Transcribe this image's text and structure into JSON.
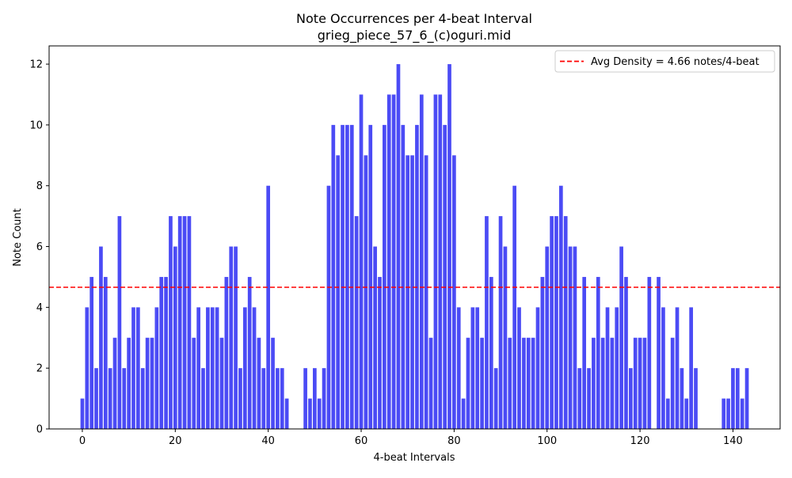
{
  "chart_data": {
    "type": "bar",
    "title": "Note Occurrences per 4-beat Interval",
    "subtitle": "grieg_piece_57_6_(c)oguri.mid",
    "xlabel": "4-beat Intervals",
    "ylabel": "Note Count",
    "xlim": [
      -7.15,
      150.15
    ],
    "ylim": [
      0,
      12.6
    ],
    "xticks": [
      0,
      20,
      40,
      60,
      80,
      100,
      120,
      140
    ],
    "yticks": [
      0,
      2,
      4,
      6,
      8,
      10,
      12
    ],
    "bar_color": "#4b4bf5",
    "x": [
      0,
      1,
      2,
      3,
      4,
      5,
      6,
      7,
      8,
      9,
      10,
      11,
      12,
      13,
      14,
      15,
      16,
      17,
      18,
      19,
      20,
      21,
      22,
      23,
      24,
      25,
      26,
      27,
      28,
      29,
      30,
      31,
      32,
      33,
      34,
      35,
      36,
      37,
      38,
      39,
      40,
      41,
      42,
      43,
      44,
      45,
      46,
      47,
      48,
      49,
      50,
      51,
      52,
      53,
      54,
      55,
      56,
      57,
      58,
      59,
      60,
      61,
      62,
      63,
      64,
      65,
      66,
      67,
      68,
      69,
      70,
      71,
      72,
      73,
      74,
      75,
      76,
      77,
      78,
      79,
      80,
      81,
      82,
      83,
      84,
      85,
      86,
      87,
      88,
      89,
      90,
      91,
      92,
      93,
      94,
      95,
      96,
      97,
      98,
      99,
      100,
      101,
      102,
      103,
      104,
      105,
      106,
      107,
      108,
      109,
      110,
      111,
      112,
      113,
      114,
      115,
      116,
      117,
      118,
      119,
      120,
      121,
      122,
      123,
      124,
      125,
      126,
      127,
      128,
      129,
      130,
      131,
      132,
      133,
      134,
      135,
      136,
      137,
      138,
      139,
      140,
      141,
      142,
      143
    ],
    "values": [
      1,
      4,
      5,
      2,
      6,
      5,
      2,
      3,
      7,
      2,
      3,
      4,
      4,
      2,
      3,
      3,
      4,
      5,
      5,
      7,
      6,
      7,
      7,
      7,
      3,
      4,
      2,
      4,
      4,
      4,
      3,
      5,
      6,
      6,
      2,
      4,
      5,
      4,
      3,
      2,
      8,
      3,
      2,
      2,
      1,
      0,
      0,
      0,
      2,
      1,
      2,
      1,
      2,
      8,
      10,
      9,
      10,
      10,
      10,
      7,
      11,
      9,
      10,
      6,
      5,
      10,
      11,
      11,
      12,
      10,
      9,
      9,
      10,
      11,
      9,
      3,
      11,
      11,
      10,
      12,
      9,
      4,
      1,
      3,
      4,
      4,
      3,
      7,
      5,
      2,
      7,
      6,
      3,
      8,
      4,
      3,
      3,
      3,
      4,
      5,
      6,
      7,
      7,
      8,
      7,
      6,
      6,
      2,
      5,
      2,
      3,
      5,
      3,
      4,
      3,
      4,
      6,
      5,
      2,
      3,
      3,
      3,
      5,
      0,
      5,
      4,
      1,
      3,
      4,
      2,
      1,
      4,
      2,
      0,
      0,
      0,
      0,
      0,
      1,
      1,
      2,
      2,
      1,
      2
    ],
    "reference_line": {
      "label": "Avg Density = 4.66 notes/4-beat",
      "value": 4.66,
      "color": "#ff0000",
      "style": "dashed"
    },
    "legend_position": "top-right",
    "grid": false
  }
}
